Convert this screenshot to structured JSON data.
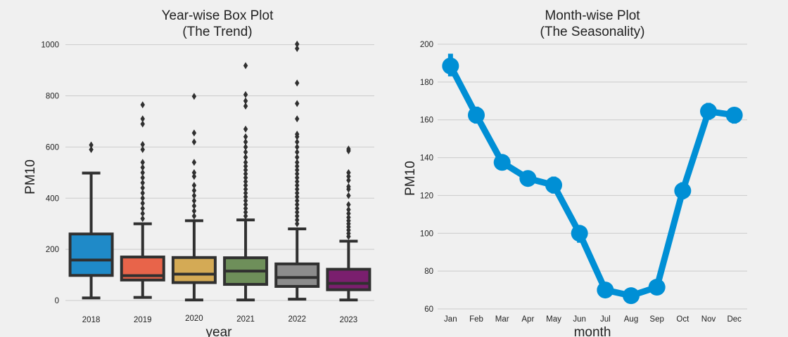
{
  "chart_data": [
    {
      "type": "box",
      "title": "Year-wise Box Plot",
      "subtitle": "(The Trend)",
      "xlabel": "year",
      "ylabel": "PM10",
      "ylim": [
        0,
        1010
      ],
      "yticks": [
        0,
        200,
        400,
        600,
        800,
        1000
      ],
      "grid": "horizontal",
      "categories": [
        "2018",
        "2019",
        "2020",
        "2021",
        "2022",
        "2023"
      ],
      "colors": [
        "#1f8ac8",
        "#e8644a",
        "#d4aa55",
        "#6e8f5a",
        "#8c8c8c",
        "#7a1f6e"
      ],
      "boxes": [
        {
          "q1": 98,
          "median": 158,
          "q3": 260,
          "whisker_low": 10,
          "whisker_high": 498,
          "outliers": [
            590,
            608
          ]
        },
        {
          "q1": 80,
          "median": 97,
          "q3": 170,
          "whisker_low": 12,
          "whisker_high": 300,
          "outliers": [
            320,
            340,
            360,
            380,
            400,
            420,
            440,
            460,
            480,
            500,
            520,
            540,
            590,
            610,
            690,
            710,
            765
          ]
        },
        {
          "q1": 70,
          "median": 103,
          "q3": 168,
          "whisker_low": 2,
          "whisker_high": 312,
          "outliers": [
            330,
            350,
            370,
            390,
            410,
            430,
            450,
            485,
            500,
            540,
            620,
            655,
            798
          ]
        },
        {
          "q1": 63,
          "median": 115,
          "q3": 167,
          "whisker_low": 2,
          "whisker_high": 315,
          "outliers": [
            330,
            345,
            360,
            375,
            390,
            405,
            420,
            435,
            450,
            465,
            480,
            495,
            510,
            525,
            540,
            560,
            580,
            600,
            620,
            640,
            670,
            760,
            780,
            805,
            918
          ]
        },
        {
          "q1": 55,
          "median": 90,
          "q3": 143,
          "whisker_low": 5,
          "whisker_high": 280,
          "outliers": [
            300,
            315,
            330,
            345,
            360,
            375,
            390,
            405,
            420,
            435,
            450,
            465,
            480,
            495,
            510,
            525,
            540,
            560,
            580,
            600,
            620,
            640,
            650,
            710,
            770,
            850,
            985,
            1002
          ]
        },
        {
          "q1": 42,
          "median": 67,
          "q3": 122,
          "whisker_low": 2,
          "whisker_high": 232,
          "outliers": [
            250,
            262,
            275,
            288,
            300,
            312,
            325,
            340,
            355,
            375,
            410,
            435,
            445,
            470,
            485,
            500,
            585,
            592
          ]
        }
      ]
    },
    {
      "type": "line",
      "title": "Month-wise Plot",
      "subtitle": "(The Seasonality)",
      "xlabel": "month",
      "ylabel": "PM10",
      "ylim": [
        60,
        200
      ],
      "yticks": [
        60,
        80,
        100,
        120,
        140,
        160,
        180,
        200
      ],
      "grid": "horizontal",
      "color": "#008fd5",
      "categories": [
        "Jan",
        "Feb",
        "Mar",
        "Apr",
        "May",
        "Jun",
        "Jul",
        "Aug",
        "Sep",
        "Oct",
        "Nov",
        "Dec"
      ],
      "values": [
        188.5,
        162.5,
        137.5,
        129.0,
        125.5,
        100.0,
        70.0,
        67.0,
        71.5,
        122.5,
        164.5,
        162.5
      ],
      "ci_low": [
        183,
        158,
        134,
        125,
        121,
        95,
        68,
        65,
        69,
        118,
        160,
        158
      ],
      "ci_high": [
        195,
        167,
        141,
        133,
        130,
        104,
        72,
        69,
        74,
        127,
        169,
        166
      ]
    }
  ]
}
